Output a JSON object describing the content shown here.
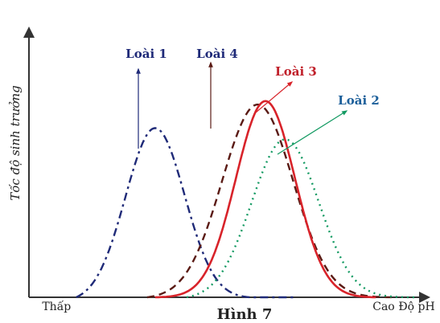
{
  "chart_data": {
    "type": "line",
    "title": "Hình 7",
    "xlabel": "Độ pH",
    "ylabel": "Tốc độ sinh trưởng",
    "x_tick_labels": [
      {
        "label": "Thấp",
        "x": 0.07
      },
      {
        "label": "Cao",
        "x": 0.9
      }
    ],
    "xlim": [
      0,
      1.0
    ],
    "ylim": [
      0,
      1.0
    ],
    "grid": false,
    "legend": "inline labels with arrows",
    "series": [
      {
        "name": "Loài 1",
        "color": "#1f2a78",
        "style": "dash-dot",
        "mu": 0.32,
        "sigma": 0.075,
        "peak": 0.65,
        "start": 0.12,
        "end": 0.68
      },
      {
        "name": "Loài 4",
        "color": "#5a1a14",
        "style": "dashed",
        "mu": 0.58,
        "sigma": 0.09,
        "peak": 0.73,
        "start": 0.3,
        "end": 0.93
      },
      {
        "name": "Loài 3",
        "color": "#d8232a",
        "style": "solid",
        "mu": 0.6,
        "sigma": 0.075,
        "peak": 0.74,
        "start": 0.32,
        "end": 0.88
      },
      {
        "name": "Loài 2",
        "color": "#139a62",
        "style": "dotted",
        "mu": 0.65,
        "sigma": 0.085,
        "peak": 0.6,
        "start": 0.4,
        "end": 0.98
      }
    ]
  }
}
